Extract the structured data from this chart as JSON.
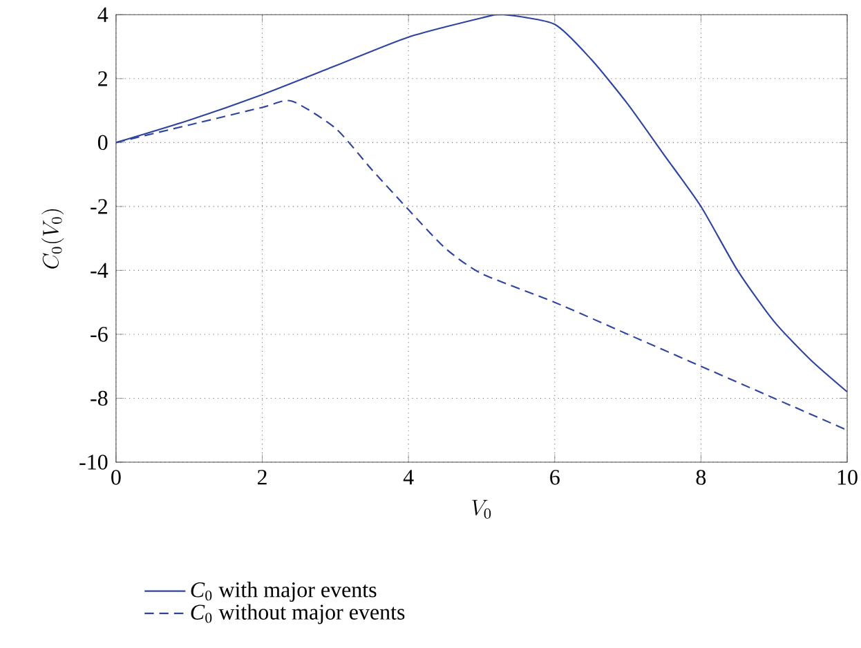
{
  "chart_data": {
    "type": "line",
    "xlabel": "V_0",
    "ylabel": "C_0(V_0)",
    "xlim": [
      0,
      10
    ],
    "ylim": [
      -10,
      4
    ],
    "xticks": [
      0,
      2,
      4,
      6,
      8,
      10
    ],
    "yticks": [
      -10,
      -8,
      -6,
      -4,
      -2,
      0,
      2,
      4
    ],
    "grid": true,
    "legend": "bottom",
    "series": [
      {
        "name": "*C*$_{0}$ with major events",
        "color": "#2f43a0",
        "line_style": "solid",
        "x": [
          0,
          1,
          2,
          3,
          4,
          5,
          5.3,
          6,
          6.5,
          7,
          7.5,
          8,
          8.5,
          9,
          9.5,
          10
        ],
        "values": [
          0,
          0.7,
          1.5,
          2.4,
          3.3,
          3.9,
          4.0,
          3.7,
          2.6,
          1.2,
          -0.4,
          -2.0,
          -4.0,
          -5.6,
          -6.8,
          -7.8
        ]
      },
      {
        "name": "*C*$_{0}$ without major events",
        "color": "#2f43a0",
        "line_style": "dashed",
        "x": [
          0,
          1,
          2,
          2.4,
          3,
          3.5,
          4,
          4.5,
          5,
          6,
          7,
          8,
          9,
          10
        ],
        "values": [
          0,
          0.55,
          1.1,
          1.3,
          0.45,
          -0.85,
          -2.1,
          -3.3,
          -4.1,
          -5.0,
          -6.0,
          -7.0,
          -8.0,
          -9.0
        ]
      }
    ]
  }
}
